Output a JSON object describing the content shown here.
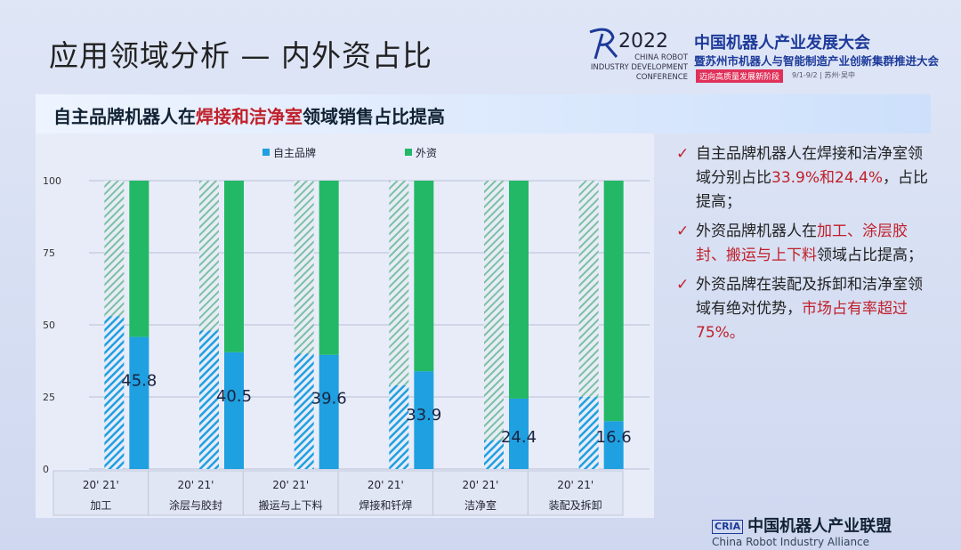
{
  "title": "应用领域分析  — 内外资占比",
  "logo": {
    "year": "2022",
    "en": "CHINA ROBOT\nINDUSTRY DEVELOPMENT\nCONFERENCE",
    "cn1": "中国机器人产业发展大会",
    "cn2": "暨苏州市机器人与智能制造产业创新集群推进大会",
    "tag": "迈向高质量发展新阶段",
    "date": "9/1-9/2 | 苏州·吴中"
  },
  "banner": {
    "pre": "自主品牌机器人在",
    "hl": "焊接和洁净室",
    "post": "领域销售占比提高"
  },
  "notes": [
    {
      "parts": [
        {
          "t": "自主品牌机器人在焊接和洁净室领域分别占比",
          "red": false
        },
        {
          "t": "33.9%和24.4%",
          "red": true
        },
        {
          "t": "，占比提高；",
          "red": false
        }
      ]
    },
    {
      "parts": [
        {
          "t": "外资品牌机器人在",
          "red": false
        },
        {
          "t": "加工、涂层胶封、搬运与上下料",
          "red": true
        },
        {
          "t": "领域占比提高；",
          "red": false
        }
      ]
    },
    {
      "parts": [
        {
          "t": "外资品牌在装配及拆卸和洁净室领域有绝对优势，",
          "red": false
        },
        {
          "t": "市场占有率超过75%。",
          "red": true
        }
      ]
    }
  ],
  "check_icon": "✓",
  "footer": {
    "abbr": "CRIA",
    "cn": "中国机器人产业联盟",
    "en": "China Robot Industry Alliance"
  },
  "chart_data": {
    "type": "bar",
    "stacked": true,
    "percent": true,
    "categories": [
      "加工",
      "涂层与胶封",
      "搬运与上下料",
      "焊接和钎焊",
      "洁净室",
      "装配及拆卸"
    ],
    "sub_categories": [
      "20'",
      "21'"
    ],
    "series": [
      {
        "name": "自主品牌",
        "color": "#1fa0e0",
        "values_2020": [
          53,
          48,
          40,
          29,
          10,
          25
        ],
        "values_2021": [
          45.8,
          40.5,
          39.6,
          33.9,
          24.4,
          16.6
        ]
      },
      {
        "name": "外资",
        "color": "#22b866",
        "values_2020": [
          47,
          52,
          60,
          71,
          90,
          75
        ],
        "values_2021": [
          54.2,
          59.5,
          60.4,
          66.1,
          75.6,
          83.4
        ]
      }
    ],
    "data_labels": [
      "45.8",
      "40.5",
      "39.6",
      "33.9",
      "24.4",
      "16.6"
    ],
    "yticks": [
      0,
      25,
      50,
      75,
      100
    ],
    "ylim": [
      0,
      100
    ],
    "grid": true,
    "legend": "top",
    "note": "2020 bars hatched"
  }
}
